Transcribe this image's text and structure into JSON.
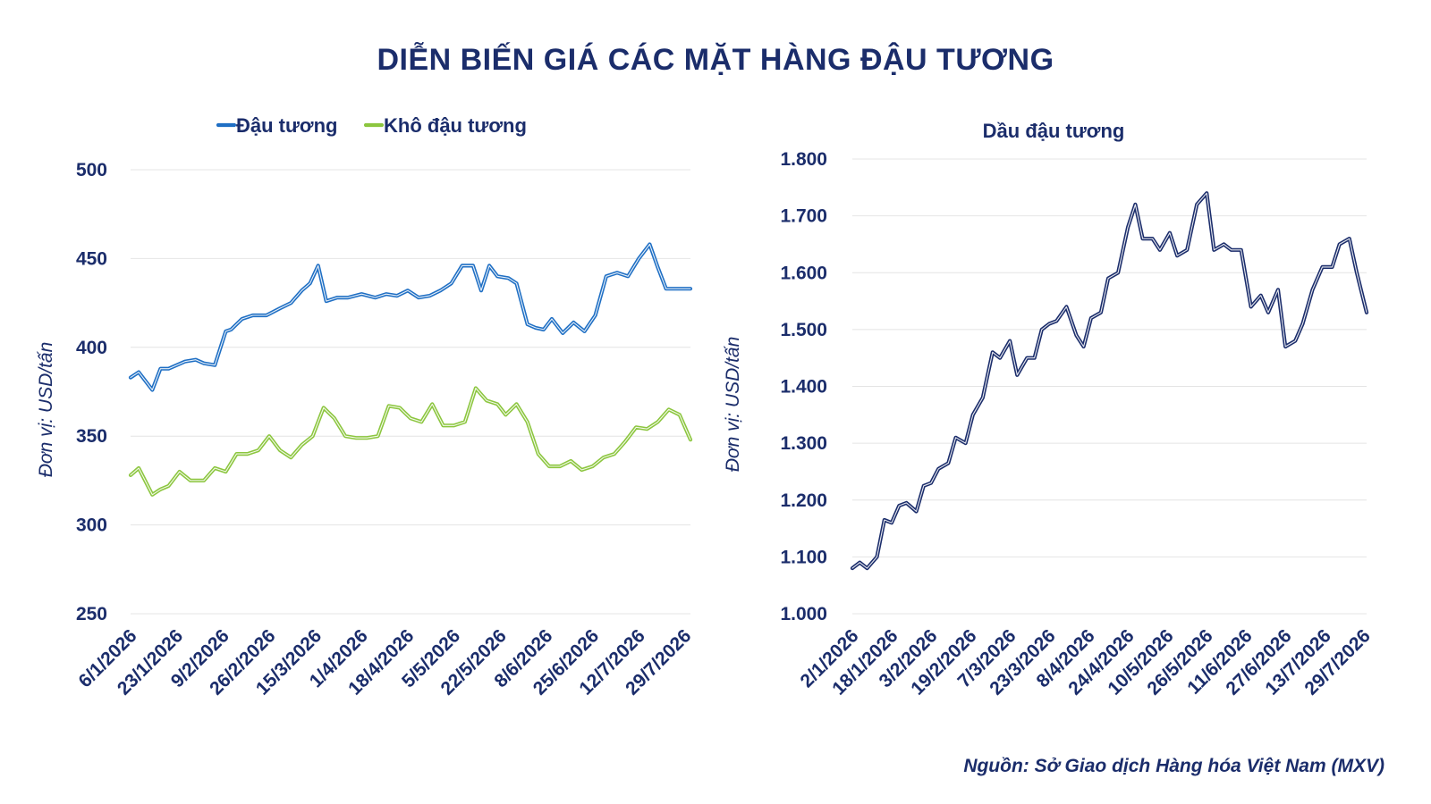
{
  "title": "DIỄN BIẾN GIÁ CÁC MẶT HÀNG ĐẬU TƯƠNG",
  "source": "Nguồn: Sở Giao dịch Hàng hóa Việt Nam (MXV)",
  "chart_data": [
    {
      "type": "line",
      "title": "",
      "ylabel": "Đơn vị: USD/tấn",
      "xlabel": "",
      "ylim": [
        250,
        500
      ],
      "yticks": [
        "250",
        "300",
        "350",
        "400",
        "450",
        "500"
      ],
      "ytick_values": [
        250,
        300,
        350,
        400,
        450,
        500
      ],
      "xticks": [
        "6/1/2026",
        "23/1/2026",
        "9/2/2026",
        "26/2/2026",
        "15/3/2026",
        "1/4/2026",
        "18/4/2026",
        "5/5/2026",
        "22/5/2026",
        "8/6/2026",
        "25/6/2026",
        "12/7/2026",
        "29/7/2026"
      ],
      "x_range": [
        "6/1/2026",
        "31/7/2026"
      ],
      "grid": true,
      "legend_position": "top",
      "series": [
        {
          "name": "Đậu tương",
          "color": "#1f6fc4",
          "x": [
            "6/1/2026",
            "9/1/2026",
            "14/1/2026",
            "17/1/2026",
            "20/1/2026",
            "26/1/2026",
            "30/1/2026",
            "2/2/2026",
            "6/2/2026",
            "10/2/2026",
            "12/2/2026",
            "16/2/2026",
            "20/2/2026",
            "25/2/2026",
            "2/3/2026",
            "6/3/2026",
            "10/3/2026",
            "13/3/2026",
            "16/3/2026",
            "19/3/2026",
            "23/3/2026",
            "27/3/2026",
            "1/4/2026",
            "6/4/2026",
            "10/4/2026",
            "14/4/2026",
            "18/4/2026",
            "22/4/2026",
            "26/4/2026",
            "30/4/2026",
            "4/5/2026",
            "8/5/2026",
            "12/5/2026",
            "15/5/2026",
            "18/5/2026",
            "21/5/2026",
            "25/5/2026",
            "28/5/2026",
            "1/6/2026",
            "4/6/2026",
            "7/6/2026",
            "10/6/2026",
            "14/6/2026",
            "18/6/2026",
            "22/6/2026",
            "26/6/2026",
            "30/6/2026",
            "4/7/2026",
            "8/7/2026",
            "12/7/2026",
            "16/7/2026",
            "19/7/2026",
            "22/7/2026",
            "25/7/2026",
            "28/7/2026",
            "31/7/2026"
          ],
          "values": [
            383,
            386,
            376,
            388,
            388,
            392,
            393,
            391,
            390,
            409,
            410,
            416,
            418,
            418,
            422,
            425,
            432,
            436,
            446,
            426,
            428,
            428,
            430,
            428,
            430,
            429,
            432,
            428,
            429,
            432,
            436,
            446,
            446,
            432,
            446,
            440,
            439,
            436,
            413,
            411,
            410,
            416,
            408,
            414,
            409,
            418,
            440,
            442,
            440,
            450,
            458,
            445,
            433,
            433,
            433,
            433
          ]
        },
        {
          "name": "Khô đậu tương",
          "color": "#8cc63f",
          "x": [
            "6/1/2026",
            "9/1/2026",
            "14/1/2026",
            "17/1/2026",
            "20/1/2026",
            "24/1/2026",
            "28/1/2026",
            "2/2/2026",
            "6/2/2026",
            "10/2/2026",
            "14/2/2026",
            "18/2/2026",
            "22/2/2026",
            "26/2/2026",
            "2/3/2026",
            "6/3/2026",
            "10/3/2026",
            "14/3/2026",
            "18/3/2026",
            "22/3/2026",
            "26/3/2026",
            "30/3/2026",
            "3/4/2026",
            "7/4/2026",
            "11/4/2026",
            "15/4/2026",
            "19/4/2026",
            "23/4/2026",
            "27/4/2026",
            "1/5/2026",
            "5/5/2026",
            "9/5/2026",
            "13/5/2026",
            "17/5/2026",
            "21/5/2026",
            "24/5/2026",
            "28/5/2026",
            "1/6/2026",
            "5/6/2026",
            "9/6/2026",
            "13/6/2026",
            "17/6/2026",
            "21/6/2026",
            "25/6/2026",
            "29/6/2026",
            "3/7/2026",
            "7/7/2026",
            "11/7/2026",
            "15/7/2026",
            "19/7/2026",
            "23/7/2026",
            "27/7/2026",
            "31/7/2026"
          ],
          "values": [
            328,
            332,
            317,
            320,
            322,
            330,
            325,
            325,
            332,
            330,
            340,
            340,
            342,
            350,
            342,
            338,
            345,
            350,
            366,
            360,
            350,
            349,
            349,
            350,
            367,
            366,
            360,
            358,
            368,
            356,
            356,
            358,
            377,
            370,
            368,
            362,
            368,
            358,
            340,
            333,
            333,
            336,
            331,
            333,
            338,
            340,
            347,
            355,
            354,
            358,
            365,
            362,
            348
          ]
        }
      ]
    },
    {
      "type": "line",
      "title": "Dầu đậu tương",
      "ylabel": "Đơn vị: USD/tấn",
      "xlabel": "",
      "ylim": [
        1000,
        1800
      ],
      "yticks": [
        "1.000",
        "1.100",
        "1.200",
        "1.300",
        "1.400",
        "1.500",
        "1.600",
        "1.700",
        "1.800"
      ],
      "ytick_values": [
        1000,
        1100,
        1200,
        1300,
        1400,
        1500,
        1600,
        1700,
        1800
      ],
      "xticks": [
        "2/1/2026",
        "18/1/2026",
        "3/2/2026",
        "19/2/2026",
        "7/3/2026",
        "23/3/2026",
        "8/4/2026",
        "24/4/2026",
        "10/5/2026",
        "26/5/2026",
        "11/6/2026",
        "27/6/2026",
        "13/7/2026",
        "29/7/2026"
      ],
      "x_range": [
        "2/1/2026",
        "30/7/2026"
      ],
      "grid": true,
      "legend_position": "none",
      "series": [
        {
          "name": "Dầu đậu tương",
          "color": "#1b2d6b",
          "x": [
            "2/1/2026",
            "5/1/2026",
            "8/1/2026",
            "12/1/2026",
            "15/1/2026",
            "18/1/2026",
            "21/1/2026",
            "24/1/2026",
            "28/1/2026",
            "31/1/2026",
            "3/2/2026",
            "6/2/2026",
            "10/2/2026",
            "13/2/2026",
            "17/2/2026",
            "20/2/2026",
            "24/2/2026",
            "28/2/2026",
            "3/3/2026",
            "7/3/2026",
            "10/3/2026",
            "14/3/2026",
            "17/3/2026",
            "20/3/2026",
            "23/3/2026",
            "26/3/2026",
            "30/3/2026",
            "3/4/2026",
            "6/4/2026",
            "9/4/2026",
            "13/4/2026",
            "16/4/2026",
            "20/4/2026",
            "24/4/2026",
            "27/4/2026",
            "30/4/2026",
            "4/5/2026",
            "7/5/2026",
            "11/5/2026",
            "14/5/2026",
            "18/5/2026",
            "22/5/2026",
            "26/5/2026",
            "29/5/2026",
            "2/6/2026",
            "5/6/2026",
            "9/6/2026",
            "13/6/2026",
            "17/6/2026",
            "20/6/2026",
            "24/6/2026",
            "27/6/2026",
            "1/7/2026",
            "4/7/2026",
            "8/7/2026",
            "12/7/2026",
            "16/7/2026",
            "19/7/2026",
            "23/7/2026",
            "26/7/2026",
            "30/7/2026"
          ],
          "values": [
            1080,
            1090,
            1080,
            1100,
            1165,
            1160,
            1190,
            1195,
            1180,
            1225,
            1230,
            1255,
            1265,
            1310,
            1300,
            1350,
            1380,
            1460,
            1450,
            1480,
            1420,
            1450,
            1450,
            1500,
            1510,
            1515,
            1540,
            1490,
            1470,
            1520,
            1530,
            1590,
            1600,
            1680,
            1720,
            1660,
            1660,
            1640,
            1670,
            1630,
            1640,
            1720,
            1740,
            1640,
            1650,
            1640,
            1640,
            1540,
            1560,
            1530,
            1570,
            1470,
            1480,
            1510,
            1570,
            1610,
            1610,
            1650,
            1660,
            1600,
            1530
          ]
        }
      ]
    }
  ]
}
